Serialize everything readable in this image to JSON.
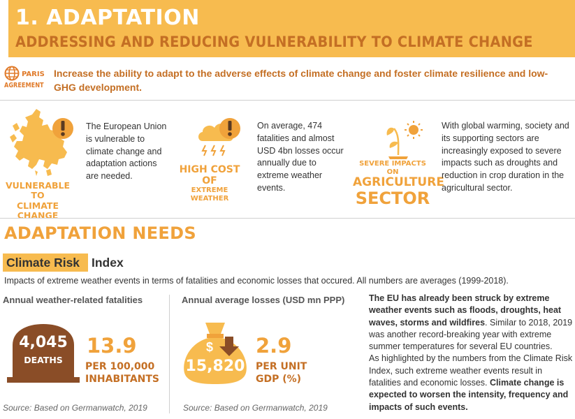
{
  "header": {
    "title": "1. ADAPTATION",
    "subtitle": "ADDRESSING AND REDUCING VULNERABILITY TO CLIMATE CHANGE"
  },
  "paris": {
    "logo_line1": "PARIS",
    "logo_line2": "AGREEMENT",
    "text": "Increase the ability to adapt to the adverse effects of climate change and foster climate resilience and low-GHG development."
  },
  "impacts": [
    {
      "icon": "europe-map-warning-icon",
      "label_line1": "VULNERABLE TO",
      "label_line2": "CLIMATE CHANGE",
      "text": "The European Union is vulnerable to climate change and adaptation actions are needed."
    },
    {
      "icon": "storm-cloud-warning-icon",
      "label_line1": "HIGH COST OF",
      "label_line2": "EXTREME WEATHER",
      "text": "On average, 474 fatalities and almost USD 4bn losses occur annually due to extreme weather events."
    },
    {
      "icon": "wilting-plant-sun-icon",
      "label_line1": "SEVERE IMPACTS ON",
      "label_line2": "AGRICULTURE",
      "label_line3": "SECTOR",
      "text": "With global warming, society and its supporting sectors are increasingly exposed to severe impacts such as droughts and reduction in crop duration in the agricultural sector."
    }
  ],
  "needs": {
    "title": "ADAPTATION NEEDS",
    "index_highlight": "Climate Risk",
    "index_rest": "Index",
    "description": "Impacts of extreme weather events in terms of fatalities and economic losses that occured. All numbers are averages (1999-2018)."
  },
  "fatalities": {
    "heading": "Annual weather-related fatalities",
    "tomb_number": "4,045",
    "tomb_label": "DEATHS",
    "rate": "13.9",
    "rate_line1": "PER 100,000",
    "rate_line2": "INHABITANTS",
    "source": "Source: Based on Germanwatch, 2019"
  },
  "losses": {
    "heading": "Annual average losses (USD mn PPP)",
    "bag_symbol": "$",
    "bag_number": "15,820",
    "rate": "2.9",
    "rate_line1": "PER UNIT",
    "rate_line2": "GDP (%)",
    "source": "Source: Based on Germanwatch, 2019"
  },
  "summary": {
    "bold1": "The EU has already been struck by extreme weather events such as floods, droughts, heat waves, storms and wildfires",
    "text1": ". Similar to 2018, 2019 was another record-breaking year with extreme summer temperatures for several EU countries.",
    "text2": "As highlighted by the numbers from the Climate Risk Index, such extreme weather events result in fatalities and economic losses. ",
    "bold2": "Climate change is expected to worsen the intensity, frequency and impacts of such events."
  },
  "colors": {
    "banner": "#f7bb4f",
    "orange": "#f0a23b",
    "dark_orange": "#c46f24",
    "brown": "#8a4d27"
  }
}
